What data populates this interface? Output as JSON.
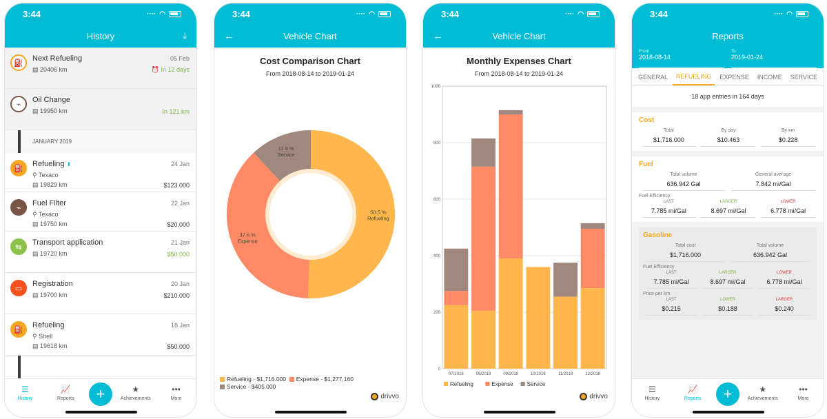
{
  "status_time": "3:44",
  "history": {
    "title": "History",
    "items": [
      {
        "title": "Next Refueling",
        "date": "05 Feb",
        "km": "20406 km",
        "right": "In 12 days",
        "icon": "fuel-pump-icon",
        "color": "#ffffff",
        "border": "#f5a623"
      },
      {
        "title": "Oil Change",
        "date": "",
        "km": "19950 km",
        "right": "In 121 km",
        "icon": "oil-can-icon",
        "color": "#ffffff",
        "border": "#795548"
      }
    ],
    "month": "JANUARY 2019",
    "entries": [
      {
        "title": "Refueling",
        "date": "24 Jan",
        "place": "Texaco",
        "km": "19829 km",
        "value": "$123.000",
        "icon": "fuel-pump-icon",
        "color": "#f5a623"
      },
      {
        "title": "Fuel Filter",
        "date": "22 Jan",
        "place": "Texaco",
        "km": "19750 km",
        "value": "$20.000",
        "icon": "oil-can-icon",
        "color": "#795548"
      },
      {
        "title": "Transport application",
        "date": "21 Jan",
        "place": "",
        "km": "19720 km",
        "value": "$50.000",
        "icon": "transport-icon",
        "color": "#8bc34a"
      },
      {
        "title": "Registration",
        "date": "20 Jan",
        "place": "",
        "km": "19700 km",
        "value": "$210.000",
        "icon": "card-icon",
        "color": "#f4511e"
      },
      {
        "title": "Refueling",
        "date": "18 Jan",
        "place": "Shell",
        "km": "19618 km",
        "value": "$50.000",
        "icon": "fuel-pump-icon",
        "color": "#f5a623"
      }
    ],
    "tabs": [
      "History",
      "Reports",
      "Achievements",
      "More"
    ]
  },
  "vehicle_chart_title": "Vehicle Chart",
  "chart_data": [
    {
      "type": "pie",
      "title": "Cost Comparison Chart",
      "subtitle": "From 2018-08-14 to 2019-01-24",
      "slices": [
        {
          "name": "Refueling",
          "value": 50.5,
          "label": "50.5 %",
          "legend": "Refueling - $1,716.000"
        },
        {
          "name": "Expense",
          "value": 37.6,
          "label": "37.6 %",
          "legend": "Expense - $1,277.160"
        },
        {
          "name": "Service",
          "value": 11.9,
          "label": "11.9 %",
          "legend": "Service - $405.000"
        }
      ],
      "colors": [
        "#ffb74d",
        "#ff8a65",
        "#a1887f"
      ]
    },
    {
      "type": "bar",
      "title": "Monthly Expenses Chart",
      "subtitle": "From 2018-08-14 to 2019-01-24",
      "categories": [
        "07/2018",
        "08/2018",
        "09/2018",
        "10/2018",
        "11/2018",
        "12/2018"
      ],
      "series": [
        {
          "name": "Refueling",
          "values": [
            225,
            205,
            390,
            360,
            255,
            285
          ]
        },
        {
          "name": "Expense",
          "values": [
            50,
            510,
            510,
            0,
            0,
            210
          ]
        },
        {
          "name": "Service",
          "values": [
            150,
            100,
            15,
            0,
            120,
            20
          ]
        }
      ],
      "ylim": [
        0,
        1000
      ],
      "yticks": [
        0,
        200,
        400,
        600,
        800,
        1000
      ],
      "colors": [
        "#ffb74d",
        "#ff8a65",
        "#a1887f"
      ],
      "grid": true,
      "legend": "bottom"
    }
  ],
  "reports": {
    "title": "Reports",
    "from_label": "From",
    "from_value": "2018-08-14",
    "to_label": "To",
    "to_value": "2019-01-24",
    "tabs": [
      "GENERAL",
      "REFUELING",
      "EXPENSE",
      "INCOME",
      "SERVICE"
    ],
    "summary": "18 app entries in 164 days",
    "cost": {
      "header": "Cost",
      "labels": [
        "Total",
        "By day",
        "By km"
      ],
      "values": [
        "$1,716.000",
        "$10.463",
        "$0.228"
      ]
    },
    "fuel": {
      "header": "Fuel",
      "labels": [
        "Total volume",
        "General average"
      ],
      "values": [
        "636.942 Gal",
        "7.842 mi/Gal"
      ],
      "eff_label": "Fuel Efficiency",
      "eff_labels": [
        "LAST",
        "LARGER",
        "LOWER"
      ],
      "eff_values": [
        "7.785 mi/Gal",
        "8.697 mi/Gal",
        "6.778 mi/Gal"
      ]
    },
    "gasoline": {
      "header": "Gasoline",
      "labels": [
        "Total cost",
        "Total volume"
      ],
      "values": [
        "$1,716.000",
        "636.942 Gal"
      ],
      "eff_label": "Fuel Efficiency",
      "eff_labels": [
        "LAST",
        "LARGER",
        "LOWER"
      ],
      "eff_values": [
        "7.785 mi/Gal",
        "8.697 mi/Gal",
        "6.778 mi/Gal"
      ],
      "price_label": "Price per km",
      "price_labels": [
        "LAST",
        "LOWER",
        "LARGER"
      ],
      "price_values": [
        "$0.215",
        "$0.188",
        "$0.240"
      ]
    }
  },
  "brand": "drivvo"
}
